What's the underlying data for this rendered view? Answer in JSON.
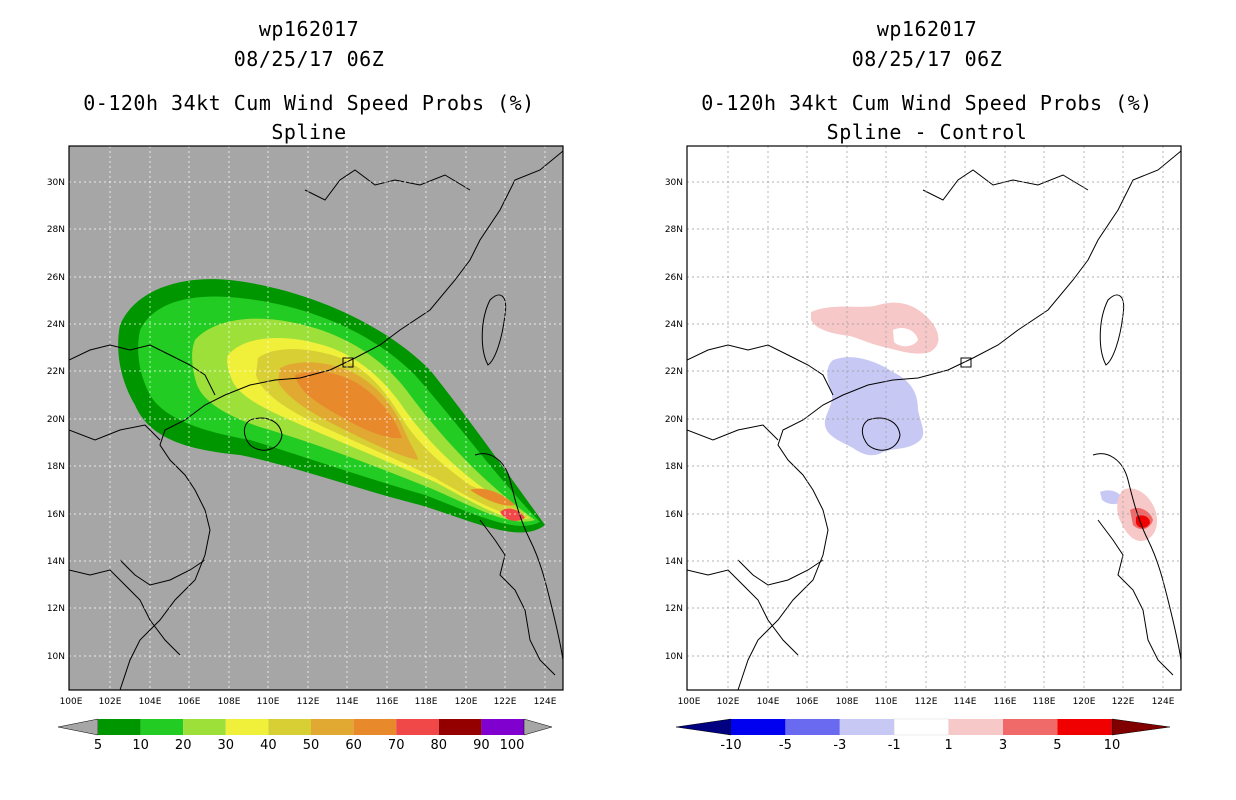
{
  "left": {
    "storm_id": "wp162017",
    "datetime": "08/25/17 06Z",
    "title": "0-120h 34kt Cum Wind Speed Probs (%)",
    "subtitle": "Spline",
    "background_color": "#a6a6a6",
    "colorbar": {
      "labels": [
        "5",
        "10",
        "20",
        "30",
        "40",
        "50",
        "60",
        "70",
        "80",
        "90",
        "100"
      ],
      "colors": [
        "#009600",
        "#22cc22",
        "#9ee03a",
        "#f0f03a",
        "#d7cf34",
        "#e2a932",
        "#e8892c",
        "#f04848",
        "#940000",
        "#8000d0"
      ]
    }
  },
  "right": {
    "storm_id": "wp162017",
    "datetime": "08/25/17 06Z",
    "title": "0-120h 34kt Cum Wind Speed Probs (%)",
    "subtitle": "Spline - Control",
    "background_color": "#ffffff",
    "colorbar": {
      "labels": [
        "-10",
        "-5",
        "-3",
        "-1",
        "1",
        "3",
        "5",
        "10"
      ],
      "colors": [
        "#000080",
        "#0000f0",
        "#6a6af0",
        "#c8c8f5",
        "#ffffff",
        "#f7c8c8",
        "#f06a6a",
        "#f00000",
        "#800000"
      ]
    }
  },
  "axes": {
    "x_ticks": [
      "100E",
      "102E",
      "104E",
      "106E",
      "108E",
      "110E",
      "112E",
      "114E",
      "116E",
      "118E",
      "120E",
      "122E",
      "124E"
    ],
    "y_ticks": [
      "30N",
      "28N",
      "26N",
      "24N",
      "22N",
      "20N",
      "18N",
      "16N",
      "14N",
      "12N",
      "10N"
    ]
  }
}
